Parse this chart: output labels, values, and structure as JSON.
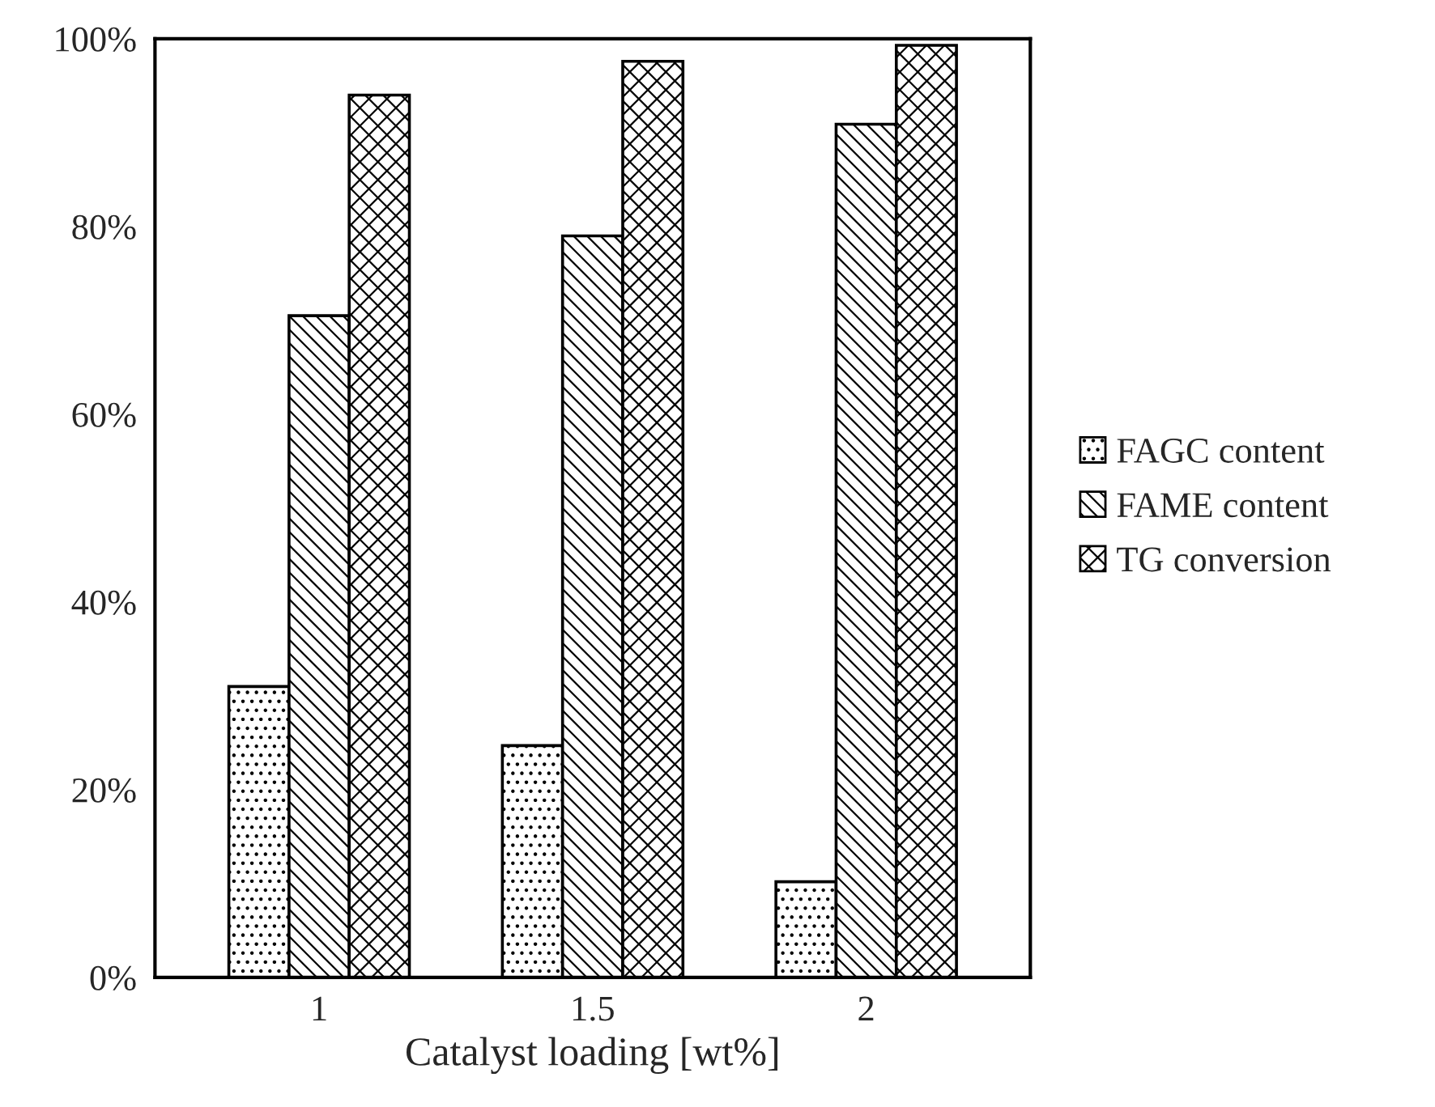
{
  "chart_data": {
    "type": "bar",
    "xlabel": "Catalyst loading [wt%]",
    "categories": [
      "1",
      "1.5",
      "2"
    ],
    "series": [
      {
        "name": "FAGC content",
        "color": "#000000",
        "values": [
          31,
          24.7,
          10.2
        ]
      },
      {
        "name": "FAME content",
        "color": "#000000",
        "values": [
          70.5,
          79,
          90.9
        ]
      },
      {
        "name": "TG conversion",
        "color": "#000000",
        "values": [
          94,
          97.6,
          99.3
        ]
      }
    ],
    "ylim": [
      0,
      100
    ],
    "yticks": [
      {
        "value": 0,
        "label": "0%"
      },
      {
        "value": 20,
        "label": "20%"
      },
      {
        "value": 40,
        "label": "40%"
      },
      {
        "value": 60,
        "label": "60%"
      },
      {
        "value": 80,
        "label": "80%"
      },
      {
        "value": 100,
        "label": "100%"
      }
    ],
    "grid": false,
    "legend": "right"
  }
}
